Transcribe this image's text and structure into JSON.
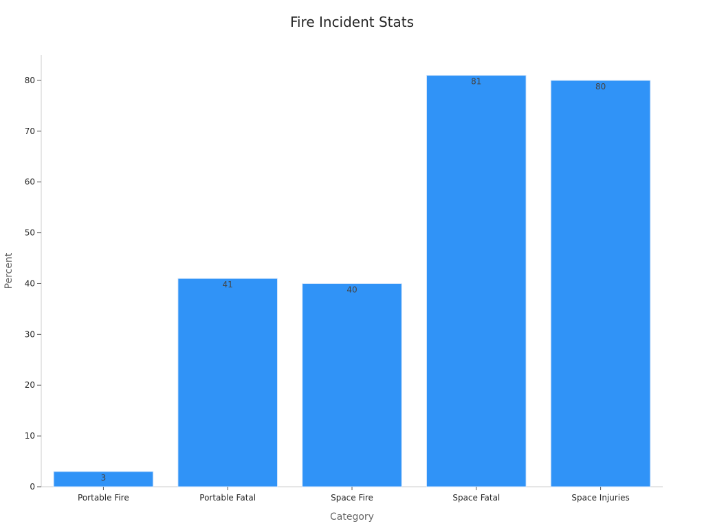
{
  "chart_data": {
    "type": "bar",
    "title": "Fire Incident Stats",
    "xlabel": "Category",
    "ylabel": "Percent",
    "categories": [
      "Portable Fire",
      "Portable Fatal",
      "Space Fire",
      "Space Fatal",
      "Space Injuries"
    ],
    "values": [
      3,
      41,
      40,
      81,
      80
    ],
    "ylim": [
      0,
      85
    ],
    "yticks": [
      0,
      10,
      20,
      30,
      40,
      50,
      60,
      70,
      80
    ],
    "grid": false,
    "bar_color": "#3093f7"
  }
}
